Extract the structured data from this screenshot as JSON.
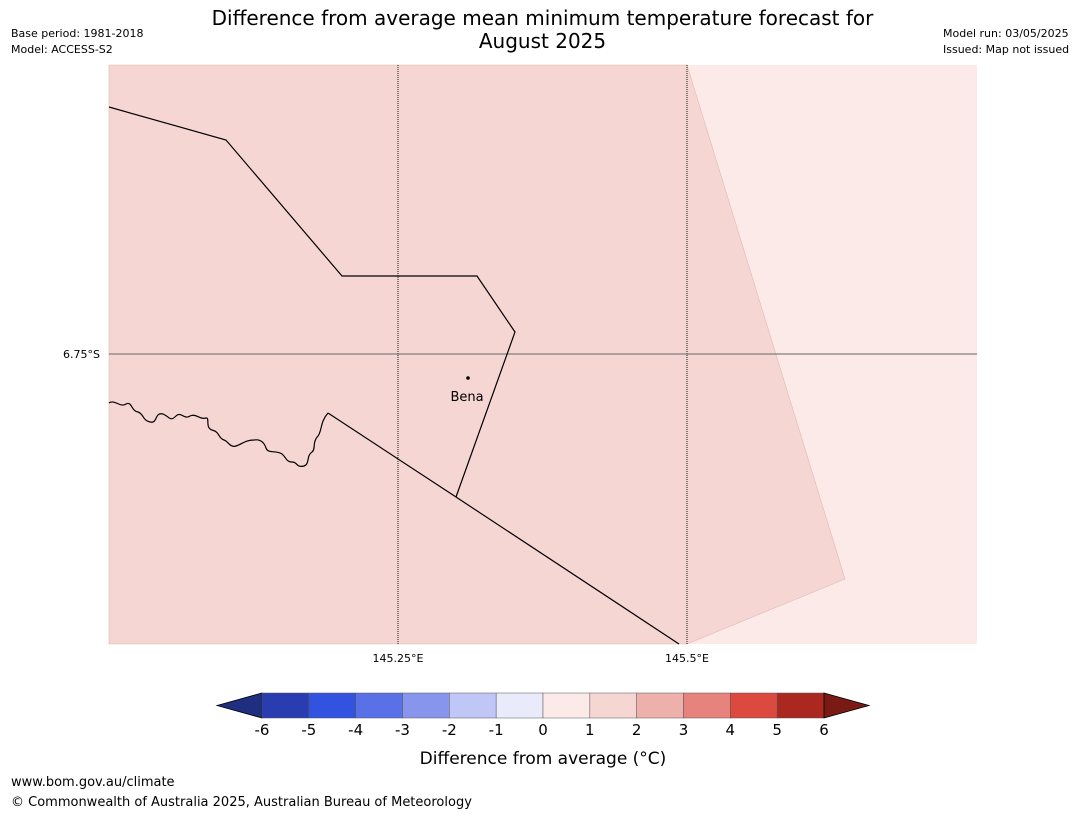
{
  "header": {
    "title_line1": "Difference from average mean minimum temperature forecast for",
    "title_line2": "August 2025",
    "base_period": "Base period: 1981-2018",
    "model": "Model: ACCESS-S2",
    "model_run": "Model run: 03/05/2025",
    "issued": "Issued: Map not issued"
  },
  "map": {
    "graticule": {
      "lat_label": "6.75°S",
      "lon_labels": [
        "145.25°E",
        "145.5°E"
      ]
    },
    "places": [
      {
        "name": "Bena"
      }
    ],
    "fill_colors": {
      "category_1_to_2": "#f5d6d3",
      "category_0_to_1": "#fbeae7"
    }
  },
  "legend": {
    "title": "Difference from average (°C)",
    "tick_labels": [
      "-6",
      "-5",
      "-4",
      "-3",
      "-2",
      "-1",
      "0",
      "1",
      "2",
      "3",
      "4",
      "5",
      "6"
    ],
    "colors": {
      "below_min": "#1f2e7f",
      "bins": [
        "#2a3db0",
        "#3252e0",
        "#5a70e6",
        "#8796ec",
        "#c0c6f5",
        "#e9ebfb",
        "#fbeae7",
        "#f5d6d3",
        "#eeb0ab",
        "#e6837d",
        "#dc4a3f",
        "#aa2820"
      ],
      "above_max": "#7a1a15"
    }
  },
  "footer": {
    "url": "www.bom.gov.au/climate",
    "copyright": "© Commonwealth of Australia 2025, Australian Bureau of Meteorology"
  }
}
